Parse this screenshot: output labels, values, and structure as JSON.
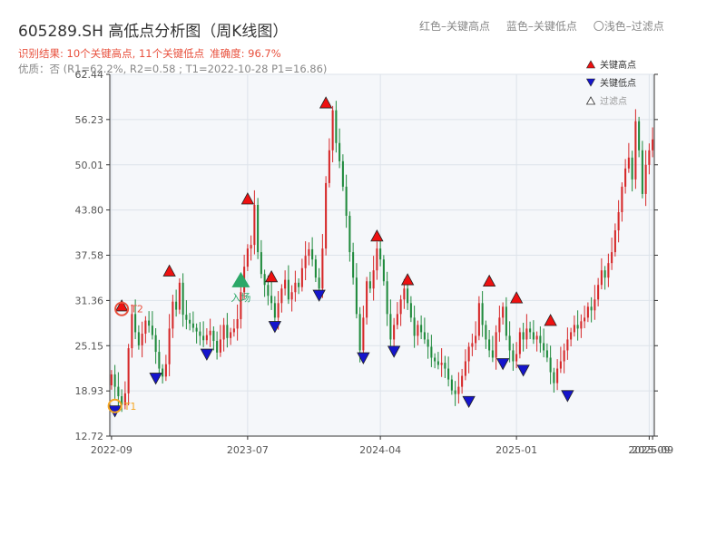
{
  "header": {
    "title": "605289.SH 高低点分析图（周K线图）",
    "legend_text": [
      "红色–关键高点",
      "蓝色–关键低点",
      "〇浅色–过滤点"
    ],
    "result_line": "识别结果: 10个关键高点, 11个关键低点",
    "accuracy": "准确度: 96.7%",
    "quality_line": "优质：否  (R1=62.2%, R2=0.58 ; T1=2022-10-28 P1=16.86)"
  },
  "colors": {
    "up": "#d62728",
    "down": "#1f8a3c",
    "key_high": "#ee1111",
    "key_low": "#1515cc",
    "entry": "#2ca868",
    "t1": "#f5a623",
    "t2": "#e8503d",
    "plot_bg": "#f5f7fa",
    "grid": "#dde3ea"
  },
  "chart_data": {
    "type": "candlestick",
    "y_ticks": [
      "62.44",
      "56.23",
      "50.01",
      "43.80",
      "37.58",
      "31.36",
      "25.15",
      "18.93",
      "12.72"
    ],
    "ylim": [
      12.72,
      62.44
    ],
    "x_ticks": [
      {
        "label": "2022-09",
        "week": 0
      },
      {
        "label": "2023-07",
        "week": 40
      },
      {
        "label": "2024-04",
        "week": 79
      },
      {
        "label": "2025-01",
        "week": 119
      },
      {
        "label": "2025-09",
        "week": 158
      },
      {
        "label": "2025-09",
        "week": 159
      }
    ],
    "weeks": 160,
    "closes": [
      21.2,
      19.5,
      18.2,
      17.0,
      18.6,
      24.8,
      29.5,
      27.0,
      25.2,
      26.8,
      28.6,
      27.9,
      26.6,
      24.3,
      22.0,
      20.9,
      22.6,
      27.5,
      31.2,
      30.1,
      33.8,
      29.4,
      28.7,
      28.2,
      27.6,
      27.1,
      26.5,
      25.9,
      26.6,
      27.2,
      25.8,
      24.2,
      26.0,
      28.0,
      26.2,
      27.0,
      27.5,
      28.8,
      32.5,
      36.0,
      38.5,
      39.0,
      44.5,
      38.0,
      35.0,
      33.5,
      32.0,
      31.0,
      29.0,
      31.0,
      33.0,
      34.2,
      31.5,
      32.5,
      33.8,
      33.2,
      35.8,
      37.5,
      38.4,
      37.0,
      34.5,
      33.0,
      38.5,
      47.5,
      52.0,
      57.5,
      53.0,
      50.5,
      47.0,
      43.0,
      38.0,
      34.5,
      29.5,
      24.5,
      29.0,
      34.0,
      33.0,
      35.5,
      38.5,
      37.0,
      34.0,
      29.5,
      26.0,
      28.0,
      29.5,
      31.5,
      33.0,
      31.0,
      29.0,
      26.5,
      28.0,
      27.0,
      26.0,
      25.0,
      23.5,
      23.0,
      22.5,
      22.8,
      22.0,
      20.5,
      19.0,
      18.5,
      19.5,
      21.0,
      23.0,
      25.0,
      25.5,
      26.5,
      31.0,
      28.0,
      26.0,
      24.5,
      23.5,
      27.0,
      29.0,
      30.5,
      26.5,
      24.5,
      23.0,
      24.0,
      27.0,
      26.0,
      27.5,
      27.0,
      26.0,
      26.5,
      25.5,
      24.5,
      23.5,
      21.5,
      20.0,
      22.0,
      23.0,
      24.5,
      26.0,
      27.0,
      28.0,
      27.5,
      28.5,
      29.0,
      30.5,
      30.0,
      31.5,
      33.5,
      35.5,
      34.5,
      36.5,
      38.0,
      41.0,
      43.5,
      47.0,
      49.5,
      51.0,
      48.0,
      56.0,
      52.0,
      46.0,
      50.0,
      52.0,
      53.5
    ],
    "highs_marked": [
      {
        "week": 3,
        "price": 29.8,
        "label": ""
      },
      {
        "week": 17,
        "price": 34.6,
        "label": ""
      },
      {
        "week": 40,
        "price": 44.5,
        "label": ""
      },
      {
        "week": 47,
        "price": 33.8,
        "label": ""
      },
      {
        "week": 63,
        "price": 57.7,
        "label": ""
      },
      {
        "week": 78,
        "price": 39.4,
        "label": ""
      },
      {
        "week": 87,
        "price": 33.4,
        "label": ""
      },
      {
        "week": 111,
        "price": 33.2,
        "label": ""
      },
      {
        "week": 119,
        "price": 30.9,
        "label": ""
      },
      {
        "week": 129,
        "price": 27.8,
        "label": ""
      }
    ],
    "lows_marked": [
      {
        "week": 1,
        "price": 17.0
      },
      {
        "week": 13,
        "price": 21.5
      },
      {
        "week": 28,
        "price": 24.8
      },
      {
        "week": 48,
        "price": 28.6
      },
      {
        "week": 61,
        "price": 32.9
      },
      {
        "week": 74,
        "price": 24.3
      },
      {
        "week": 83,
        "price": 25.2
      },
      {
        "week": 105,
        "price": 18.3
      },
      {
        "week": 115,
        "price": 23.5
      },
      {
        "week": 121,
        "price": 22.6
      },
      {
        "week": 134,
        "price": 19.1
      }
    ],
    "entry_marker": {
      "week": 38,
      "price": 33.3,
      "label": "入场"
    },
    "t1_marker": {
      "week": 1,
      "price": 16.86,
      "label": "T1"
    },
    "t2_marker": {
      "week": 3,
      "price": 30.2,
      "label": "T2"
    },
    "legend": {
      "placement": "top-right",
      "items": [
        "关键高点",
        "关键低点",
        "过滤点"
      ]
    }
  }
}
